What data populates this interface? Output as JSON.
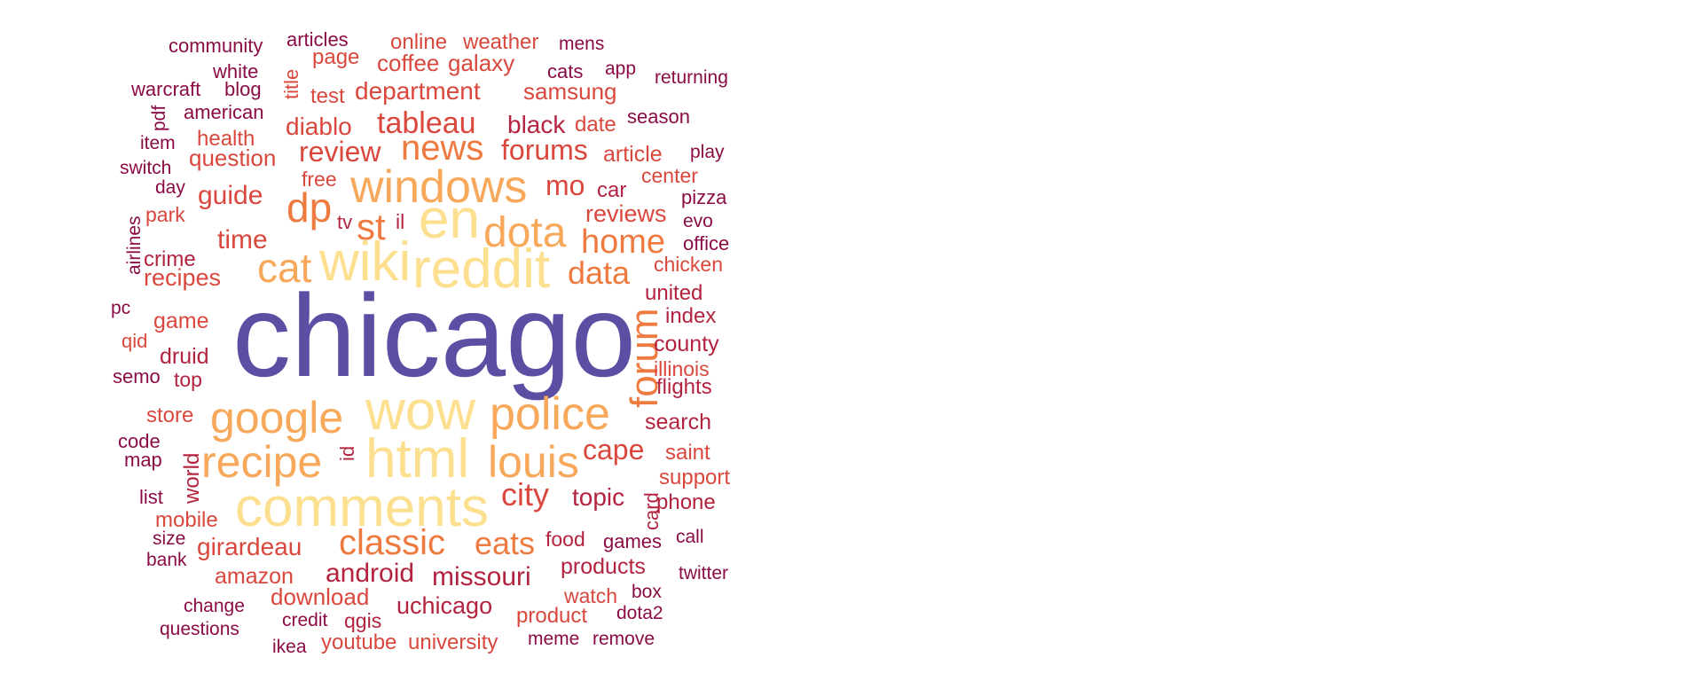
{
  "palette": {
    "dark": "#8a0c46",
    "crimson": "#b3233f",
    "red": "#d9473d",
    "orange": "#ee7a3f",
    "light_orange": "#f7a85a",
    "yellow": "#fde08f",
    "indigo": "#5b4ea3"
  },
  "words": [
    {
      "text": "chicago",
      "weight": 100,
      "color": "indigo"
    },
    {
      "text": "reddit",
      "weight": 60,
      "color": "yellow"
    },
    {
      "text": "wiki",
      "weight": 58,
      "color": "yellow"
    },
    {
      "text": "comments",
      "weight": 58,
      "color": "yellow"
    },
    {
      "text": "html",
      "weight": 58,
      "color": "yellow"
    },
    {
      "text": "wow",
      "weight": 58,
      "color": "yellow"
    },
    {
      "text": "en",
      "weight": 58,
      "color": "yellow"
    },
    {
      "text": "windows",
      "weight": 52,
      "color": "light_orange"
    },
    {
      "text": "police",
      "weight": 50,
      "color": "light_orange"
    },
    {
      "text": "google",
      "weight": 50,
      "color": "light_orange"
    },
    {
      "text": "recipe",
      "weight": 50,
      "color": "light_orange"
    },
    {
      "text": "louis",
      "weight": 50,
      "color": "light_orange"
    },
    {
      "text": "dota",
      "weight": 48,
      "color": "light_orange"
    },
    {
      "text": "cat",
      "weight": 46,
      "color": "light_orange"
    },
    {
      "text": "dp",
      "weight": 44,
      "color": "orange"
    },
    {
      "text": "forum",
      "weight": 42,
      "color": "orange"
    },
    {
      "text": "news",
      "weight": 40,
      "color": "orange"
    },
    {
      "text": "st",
      "weight": 40,
      "color": "orange"
    },
    {
      "text": "classic",
      "weight": 40,
      "color": "orange"
    },
    {
      "text": "home",
      "weight": 36,
      "color": "orange"
    },
    {
      "text": "eats",
      "weight": 34,
      "color": "orange"
    },
    {
      "text": "data",
      "weight": 34,
      "color": "orange"
    },
    {
      "text": "city",
      "weight": 34,
      "color": "red"
    },
    {
      "text": "tableau",
      "weight": 32,
      "color": "red"
    },
    {
      "text": "mo",
      "weight": 32,
      "color": "red"
    },
    {
      "text": "cape",
      "weight": 30,
      "color": "red"
    },
    {
      "text": "forums",
      "weight": 30,
      "color": "red"
    },
    {
      "text": "review",
      "weight": 30,
      "color": "red"
    },
    {
      "text": "missouri",
      "weight": 30,
      "color": "crimson"
    },
    {
      "text": "android",
      "weight": 29,
      "color": "crimson"
    },
    {
      "text": "guide",
      "weight": 28,
      "color": "red"
    },
    {
      "text": "time",
      "weight": 28,
      "color": "red"
    },
    {
      "text": "girardeau",
      "weight": 27,
      "color": "red"
    },
    {
      "text": "topic",
      "weight": 27,
      "color": "crimson"
    },
    {
      "text": "department",
      "weight": 27,
      "color": "red"
    },
    {
      "text": "diablo",
      "weight": 26,
      "color": "red"
    },
    {
      "text": "black",
      "weight": 26,
      "color": "crimson"
    },
    {
      "text": "uchicago",
      "weight": 26,
      "color": "crimson"
    },
    {
      "text": "reviews",
      "weight": 25,
      "color": "red"
    },
    {
      "text": "recipes",
      "weight": 25,
      "color": "red"
    },
    {
      "text": "coffee",
      "weight": 25,
      "color": "red"
    },
    {
      "text": "galaxy",
      "weight": 25,
      "color": "red"
    },
    {
      "text": "samsung",
      "weight": 25,
      "color": "red"
    },
    {
      "text": "download",
      "weight": 24,
      "color": "red"
    },
    {
      "text": "question",
      "weight": 24,
      "color": "red"
    },
    {
      "text": "amazon",
      "weight": 24,
      "color": "red"
    },
    {
      "text": "game",
      "weight": 24,
      "color": "red"
    },
    {
      "text": "druid",
      "weight": 24,
      "color": "crimson"
    },
    {
      "text": "products",
      "weight": 24,
      "color": "crimson"
    },
    {
      "text": "search",
      "weight": 24,
      "color": "crimson"
    },
    {
      "text": "article",
      "weight": 24,
      "color": "red"
    },
    {
      "text": "county",
      "weight": 24,
      "color": "crimson"
    },
    {
      "text": "index",
      "weight": 23,
      "color": "crimson"
    },
    {
      "text": "flights",
      "weight": 23,
      "color": "crimson"
    },
    {
      "text": "mobile",
      "weight": 23,
      "color": "red"
    },
    {
      "text": "store",
      "weight": 23,
      "color": "red"
    },
    {
      "text": "university",
      "weight": 23,
      "color": "red"
    },
    {
      "text": "youtube",
      "weight": 23,
      "color": "red"
    },
    {
      "text": "product",
      "weight": 23,
      "color": "red"
    },
    {
      "text": "test",
      "weight": 23,
      "color": "red"
    },
    {
      "text": "date",
      "weight": 23,
      "color": "red"
    },
    {
      "text": "health",
      "weight": 23,
      "color": "red"
    },
    {
      "text": "weather",
      "weight": 23,
      "color": "red"
    },
    {
      "text": "online",
      "weight": 23,
      "color": "red"
    },
    {
      "text": "page",
      "weight": 23,
      "color": "red"
    },
    {
      "text": "crime",
      "weight": 23,
      "color": "crimson"
    },
    {
      "text": "world",
      "weight": 23,
      "color": "crimson"
    },
    {
      "text": "united",
      "weight": 23,
      "color": "crimson"
    },
    {
      "text": "phone",
      "weight": 23,
      "color": "crimson"
    },
    {
      "text": "support",
      "weight": 23,
      "color": "red"
    },
    {
      "text": "saint",
      "weight": 23,
      "color": "red"
    },
    {
      "text": "chicken",
      "weight": 22,
      "color": "red"
    },
    {
      "text": "center",
      "weight": 22,
      "color": "red"
    },
    {
      "text": "car",
      "weight": 22,
      "color": "crimson"
    },
    {
      "text": "illinois",
      "weight": 22,
      "color": "red"
    },
    {
      "text": "watch",
      "weight": 22,
      "color": "red"
    },
    {
      "text": "park",
      "weight": 22,
      "color": "red"
    },
    {
      "text": "free",
      "weight": 22,
      "color": "red"
    },
    {
      "text": "qgis",
      "weight": 22,
      "color": "crimson"
    },
    {
      "text": "food",
      "weight": 22,
      "color": "crimson"
    },
    {
      "text": "games",
      "weight": 21,
      "color": "dark"
    },
    {
      "text": "top",
      "weight": 22,
      "color": "crimson"
    },
    {
      "text": "card",
      "weight": 22,
      "color": "crimson"
    },
    {
      "text": "season",
      "weight": 21,
      "color": "dark"
    },
    {
      "text": "american",
      "weight": 21,
      "color": "dark"
    },
    {
      "text": "cats",
      "weight": 21,
      "color": "dark"
    },
    {
      "text": "articles",
      "weight": 21,
      "color": "dark"
    },
    {
      "text": "office",
      "weight": 21,
      "color": "dark"
    },
    {
      "text": "pizza",
      "weight": 21,
      "color": "dark"
    },
    {
      "text": "il",
      "weight": 21,
      "color": "crimson"
    },
    {
      "text": "qid",
      "weight": 21,
      "color": "red"
    },
    {
      "text": "semo",
      "weight": 21,
      "color": "dark"
    },
    {
      "text": "code",
      "weight": 21,
      "color": "dark"
    },
    {
      "text": "map",
      "weight": 21,
      "color": "dark"
    },
    {
      "text": "list",
      "weight": 21,
      "color": "dark"
    },
    {
      "text": "community",
      "weight": 21,
      "color": "dark"
    },
    {
      "text": "white",
      "weight": 21,
      "color": "dark"
    },
    {
      "text": "blog",
      "weight": 21,
      "color": "dark"
    },
    {
      "text": "warcraft",
      "weight": 21,
      "color": "dark"
    },
    {
      "text": "title",
      "weight": 21,
      "color": "red"
    },
    {
      "text": "returning",
      "weight": 20,
      "color": "dark"
    },
    {
      "text": "twitter",
      "weight": 20,
      "color": "dark"
    },
    {
      "text": "call",
      "weight": 20,
      "color": "dark"
    },
    {
      "text": "play",
      "weight": 20,
      "color": "dark"
    },
    {
      "text": "mens",
      "weight": 20,
      "color": "dark"
    },
    {
      "text": "app",
      "weight": 20,
      "color": "dark"
    },
    {
      "text": "switch",
      "weight": 20,
      "color": "dark"
    },
    {
      "text": "item",
      "weight": 20,
      "color": "dark"
    },
    {
      "text": "day",
      "weight": 20,
      "color": "dark"
    },
    {
      "text": "airlines",
      "weight": 20,
      "color": "dark"
    },
    {
      "text": "pc",
      "weight": 20,
      "color": "dark"
    },
    {
      "text": "pdf",
      "weight": 20,
      "color": "dark"
    },
    {
      "text": "size",
      "weight": 20,
      "color": "dark"
    },
    {
      "text": "bank",
      "weight": 20,
      "color": "dark"
    },
    {
      "text": "change",
      "weight": 20,
      "color": "dark"
    },
    {
      "text": "questions",
      "weight": 20,
      "color": "dark"
    },
    {
      "text": "credit",
      "weight": 20,
      "color": "dark"
    },
    {
      "text": "ikea",
      "weight": 20,
      "color": "dark"
    },
    {
      "text": "meme",
      "weight": 20,
      "color": "dark"
    },
    {
      "text": "remove",
      "weight": 20,
      "color": "dark"
    },
    {
      "text": "box",
      "weight": 20,
      "color": "dark"
    },
    {
      "text": "dota2",
      "weight": 20,
      "color": "dark"
    },
    {
      "text": "evo",
      "weight": 20,
      "color": "dark"
    },
    {
      "text": "tv",
      "weight": 20,
      "color": "crimson"
    },
    {
      "text": "id",
      "weight": 20,
      "color": "crimson"
    }
  ]
}
